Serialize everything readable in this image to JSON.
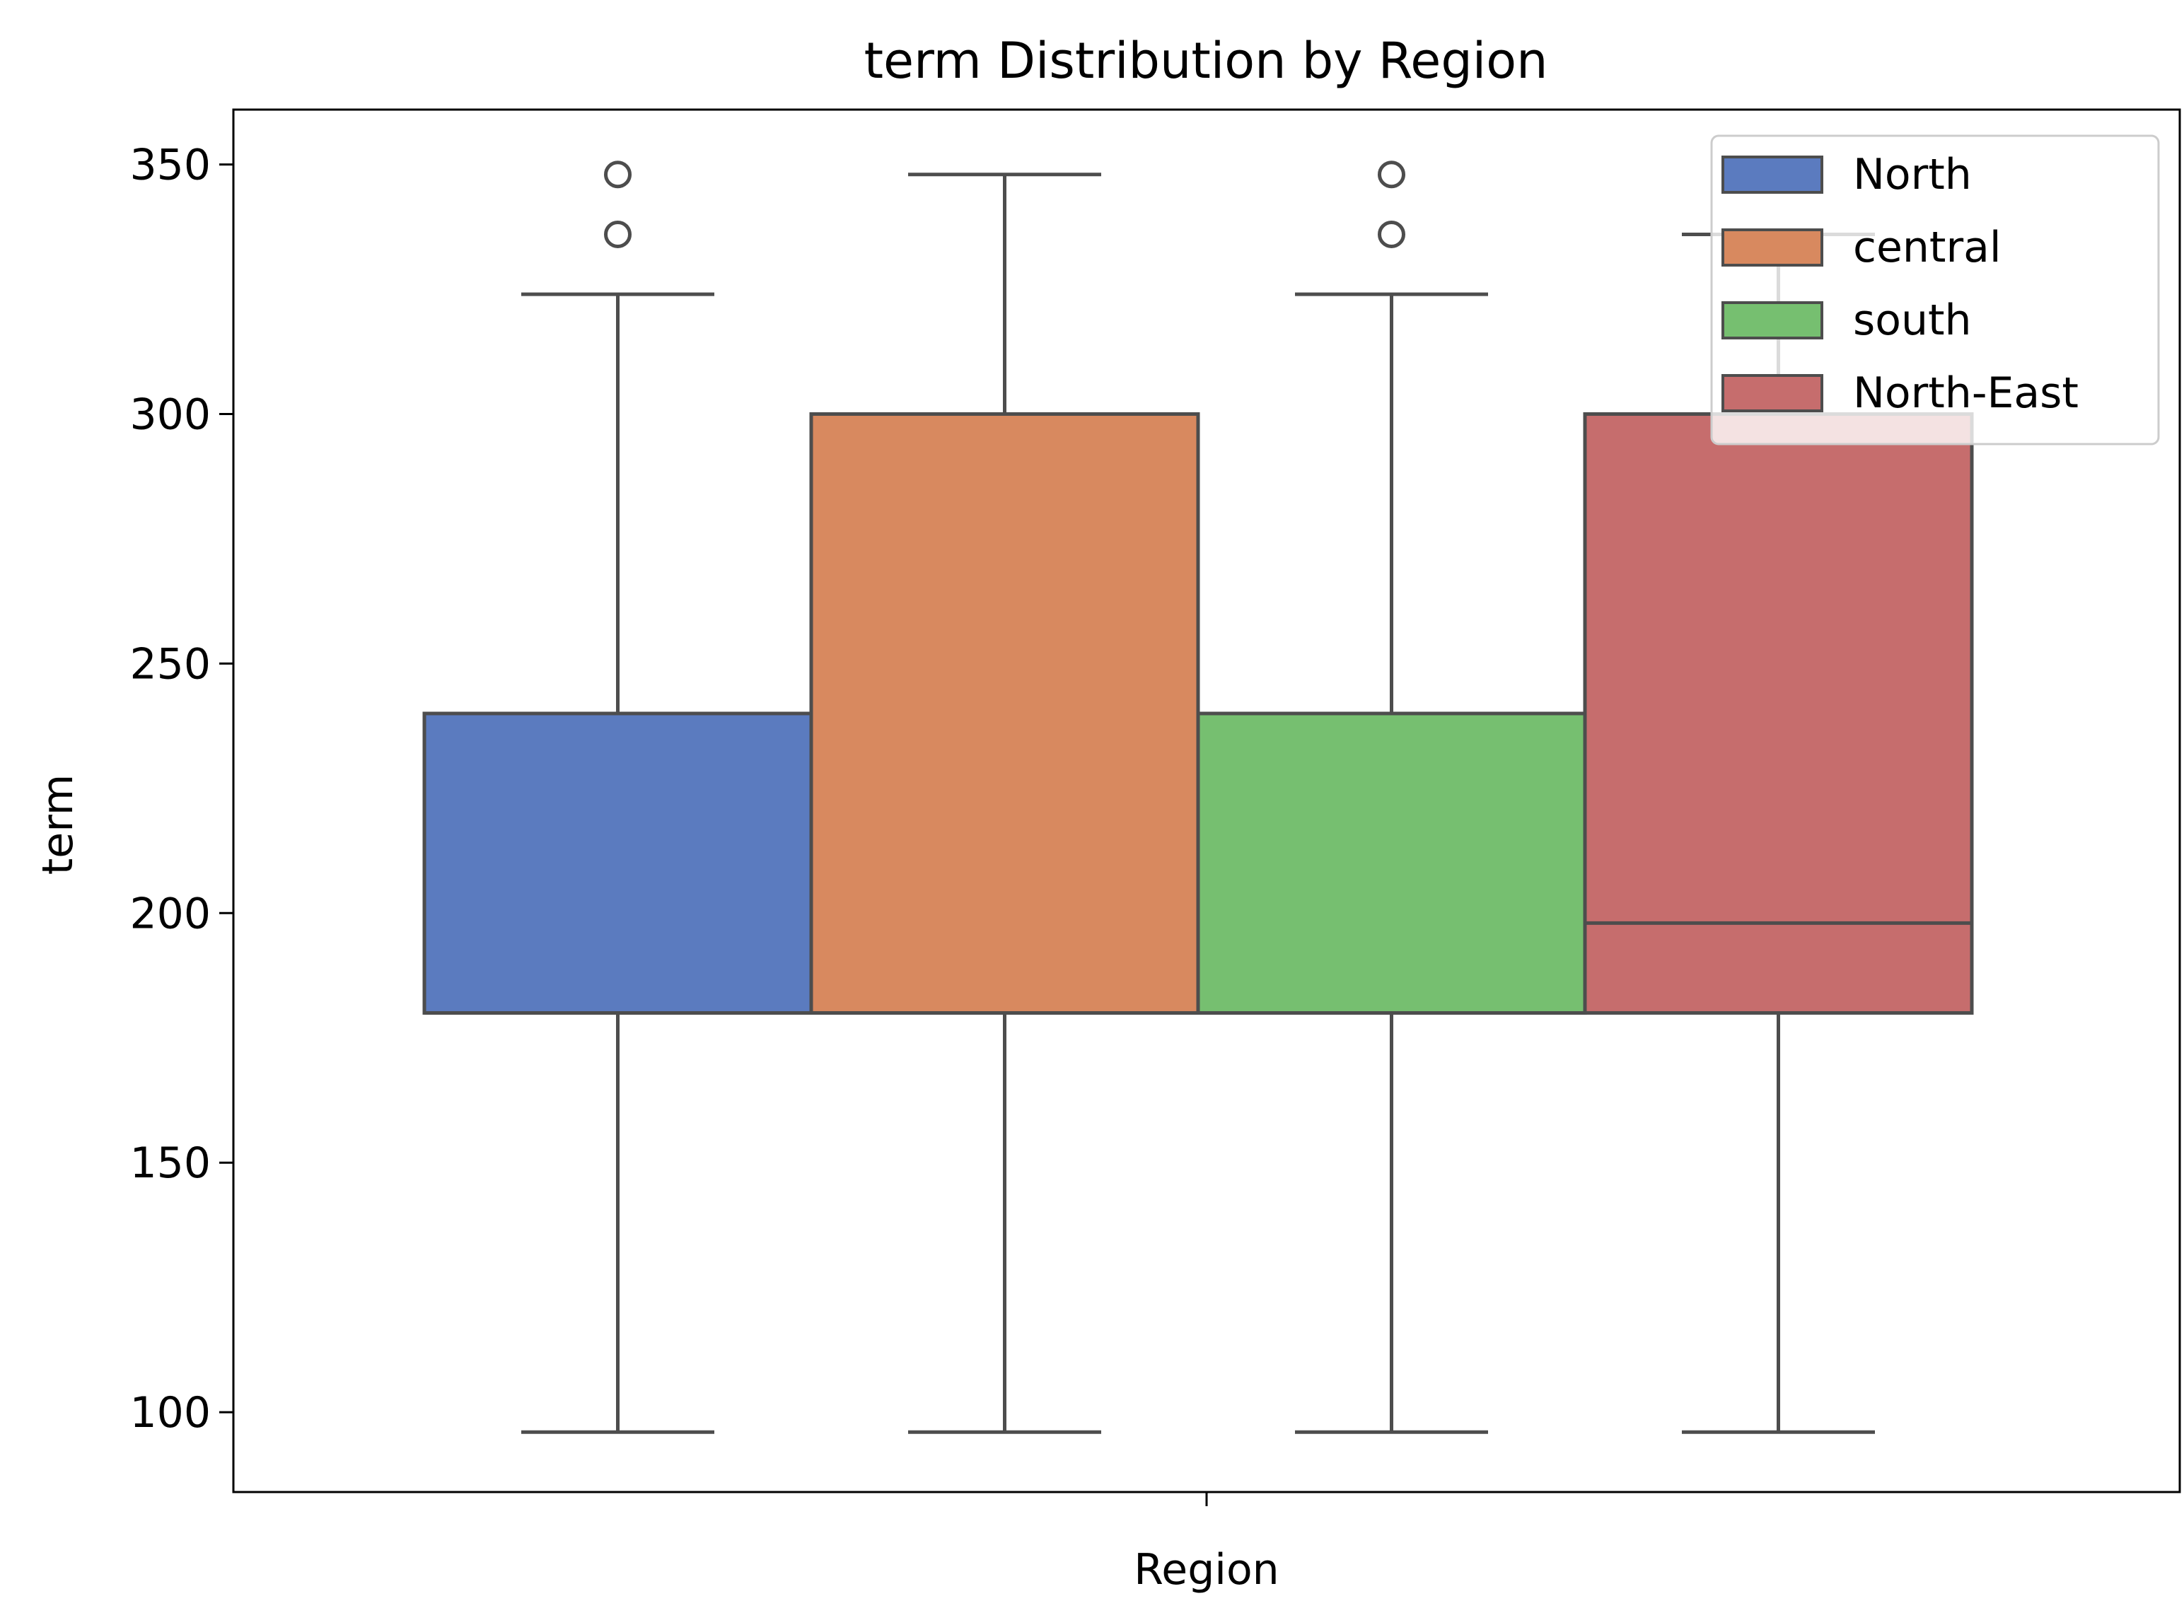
{
  "chart_data": {
    "type": "box",
    "title": "term Distribution by Region",
    "xlabel": "Region",
    "ylabel": "term",
    "ylim": [
      84,
      361
    ],
    "yticks": [
      100,
      150,
      200,
      250,
      300,
      350
    ],
    "grid": false,
    "legend_position": "top-right",
    "legend_title": "",
    "series": [
      {
        "name": "North",
        "color": "#5b7bbf",
        "whisker_low": 96,
        "q1": 180,
        "median": 180,
        "q3": 240,
        "whisker_high": 324,
        "outliers": [
          336,
          348
        ]
      },
      {
        "name": "central",
        "color": "#d8895f",
        "whisker_low": 96,
        "q1": 180,
        "median": 180,
        "q3": 300,
        "whisker_high": 348,
        "outliers": []
      },
      {
        "name": "south",
        "color": "#76bf70",
        "whisker_low": 96,
        "q1": 180,
        "median": 180,
        "q3": 240,
        "whisker_high": 324,
        "outliers": [
          336,
          348
        ]
      },
      {
        "name": "North-East",
        "color": "#c66d6d",
        "whisker_low": 96,
        "q1": 180,
        "median": 198,
        "q3": 300,
        "whisker_high": 336,
        "outliers": []
      }
    ]
  }
}
